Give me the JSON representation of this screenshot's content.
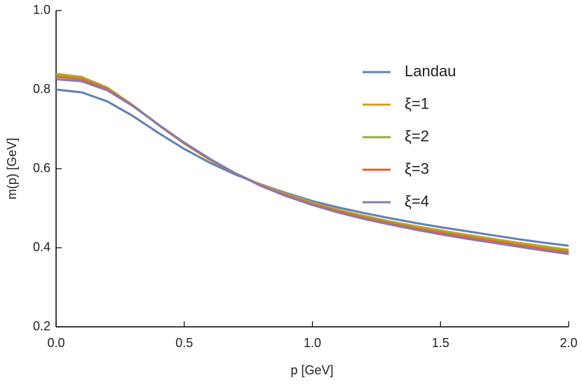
{
  "chart_data": {
    "type": "line",
    "x_label": "p [GeV]",
    "y_label": "m(p) [GeV]",
    "x": [
      0,
      0.1,
      0.2,
      0.3,
      0.4,
      0.5,
      0.6,
      0.7,
      0.8,
      0.9,
      1.0,
      1.1,
      1.2,
      1.3,
      1.4,
      1.5,
      1.6,
      1.7,
      1.8,
      1.9,
      2.0
    ],
    "series": [
      {
        "name": "Landau",
        "color": "#5e81b5",
        "values": [
          0.8,
          0.793,
          0.77,
          0.733,
          0.69,
          0.65,
          0.615,
          0.585,
          0.56,
          0.538,
          0.518,
          0.502,
          0.488,
          0.475,
          0.463,
          0.452,
          0.442,
          0.432,
          0.422,
          0.413,
          0.405
        ]
      },
      {
        "name": "ξ=1",
        "color": "#e19c24",
        "values": [
          0.84,
          0.832,
          0.805,
          0.76,
          0.71,
          0.663,
          0.622,
          0.588,
          0.559,
          0.535,
          0.514,
          0.496,
          0.481,
          0.467,
          0.455,
          0.444,
          0.433,
          0.423,
          0.413,
          0.404,
          0.395
        ]
      },
      {
        "name": "ξ=2",
        "color": "#8fb032",
        "values": [
          0.837,
          0.83,
          0.804,
          0.76,
          0.711,
          0.664,
          0.623,
          0.588,
          0.558,
          0.533,
          0.512,
          0.494,
          0.479,
          0.465,
          0.452,
          0.441,
          0.43,
          0.42,
          0.41,
          0.401,
          0.392
        ]
      },
      {
        "name": "ξ=3",
        "color": "#eb6235",
        "values": [
          0.832,
          0.826,
          0.801,
          0.759,
          0.711,
          0.665,
          0.624,
          0.588,
          0.557,
          0.532,
          0.51,
          0.492,
          0.476,
          0.462,
          0.449,
          0.438,
          0.427,
          0.417,
          0.407,
          0.397,
          0.388
        ]
      },
      {
        "name": "ξ=4",
        "color": "#8778b3",
        "values": [
          0.826,
          0.821,
          0.798,
          0.758,
          0.711,
          0.666,
          0.625,
          0.588,
          0.556,
          0.53,
          0.508,
          0.489,
          0.473,
          0.459,
          0.446,
          0.434,
          0.423,
          0.413,
          0.403,
          0.393,
          0.384
        ]
      }
    ],
    "xlim": [
      0,
      2
    ],
    "ylim": [
      0.2,
      1.0
    ],
    "xticks": [
      {
        "value": 0,
        "label": "0.0"
      },
      0.5,
      {
        "value": 1,
        "label": "1.0"
      },
      1.5,
      {
        "value": 2,
        "label": "2.0"
      }
    ],
    "yticks": [
      0.2,
      0.4,
      0.6,
      0.8,
      {
        "value": 1,
        "label": "1.0"
      }
    ],
    "grid": false
  }
}
